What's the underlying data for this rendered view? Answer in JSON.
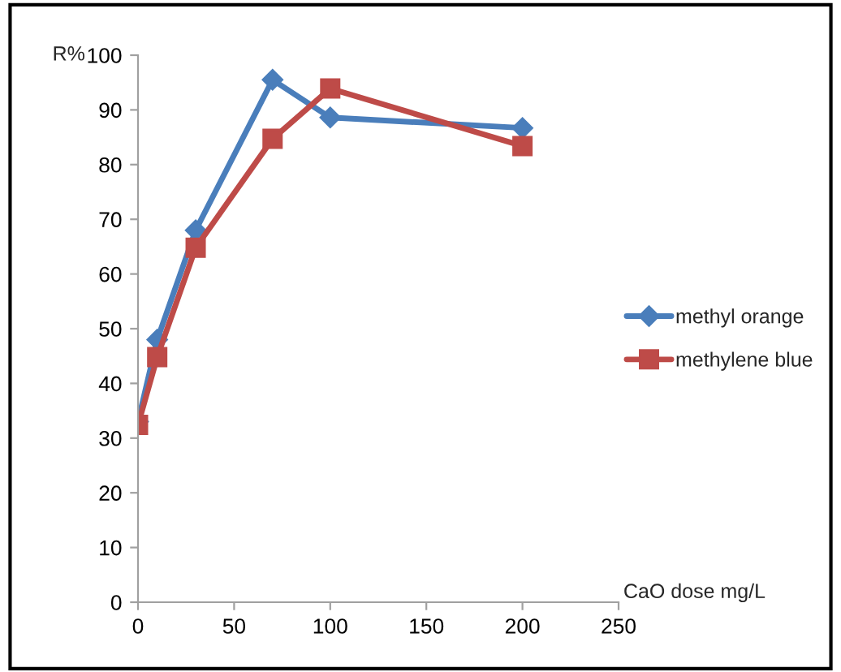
{
  "chart_data": {
    "type": "line",
    "xlabel": "CaO dose mg/L",
    "ylabel": "R%",
    "x": [
      0,
      10,
      30,
      70,
      100,
      200
    ],
    "series": [
      {
        "name": "methyl orange",
        "color": "#4a7ebb",
        "marker": "diamond",
        "values": [
          33,
          48,
          68,
          95.5,
          88.6,
          86.7
        ]
      },
      {
        "name": "methylene blue",
        "color": "#be4b48",
        "marker": "square",
        "values": [
          32.4,
          44.8,
          64.8,
          84.7,
          93.9,
          83.4
        ]
      }
    ],
    "xlim": [
      0,
      250
    ],
    "xticks": [
      0,
      50,
      100,
      150,
      200,
      250
    ],
    "ylim": [
      0,
      100
    ],
    "yticks": [
      0,
      10,
      20,
      30,
      40,
      50,
      60,
      70,
      80,
      90,
      100
    ],
    "grid": false,
    "legend": "right",
    "line_style": "solid"
  }
}
